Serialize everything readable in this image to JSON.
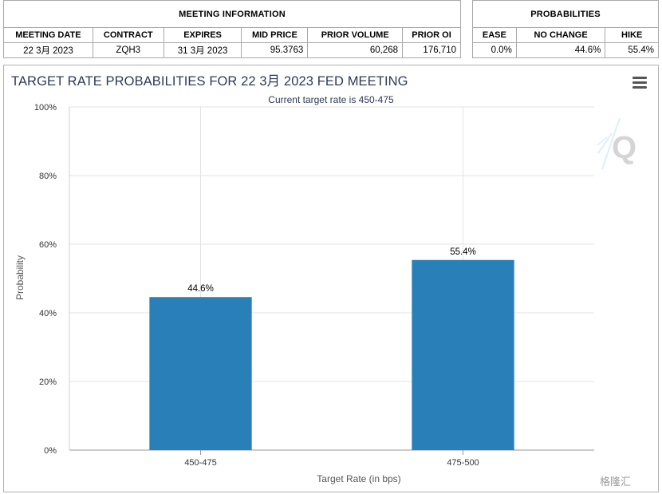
{
  "meeting_info": {
    "header": "MEETING INFORMATION",
    "columns": [
      "MEETING DATE",
      "CONTRACT",
      "EXPIRES",
      "MID PRICE",
      "PRIOR VOLUME",
      "PRIOR OI"
    ],
    "row": [
      "22 3月 2023",
      "ZQH3",
      "31 3月 2023",
      "95.3763",
      "60,268",
      "176,710"
    ]
  },
  "probabilities": {
    "header": "PROBABILITIES",
    "columns": [
      "EASE",
      "NO CHANGE",
      "HIKE"
    ],
    "row": [
      "0.0%",
      "44.6%",
      "55.4%"
    ]
  },
  "chart": {
    "menu_icon": "hamburger-menu-icon",
    "watermark_icon": "q-logo-watermark",
    "corner_badge": "格隆汇"
  },
  "chart_data": {
    "type": "bar",
    "title": "TARGET RATE PROBABILITIES FOR 22 3月 2023 FED MEETING",
    "subtitle": "Current target rate is 450-475",
    "xlabel": "Target Rate (in bps)",
    "ylabel": "Probability",
    "categories": [
      "450-475",
      "475-500"
    ],
    "values": [
      44.6,
      55.4
    ],
    "data_labels": [
      "44.6%",
      "55.4%"
    ],
    "ylim": [
      0,
      100
    ],
    "yticks": [
      "0%",
      "20%",
      "40%",
      "60%",
      "80%",
      "100%"
    ],
    "grid": true,
    "bar_color": "#2980b9"
  }
}
